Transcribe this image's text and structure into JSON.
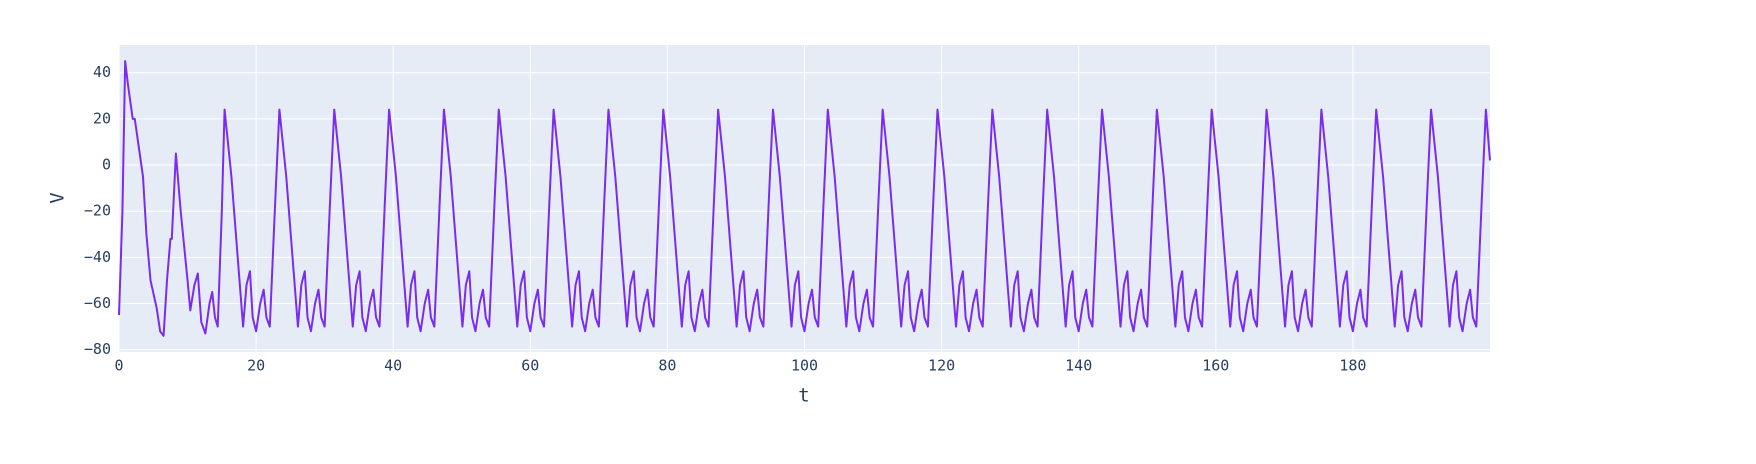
{
  "chart_data": {
    "type": "line",
    "x_label": "t",
    "y_label": "V",
    "x": [
      0,
      0.5,
      0.9,
      1.3,
      2,
      2.3,
      3.5,
      4,
      4.6,
      5.5,
      6,
      6.5,
      7,
      7.5,
      7.7,
      8.3,
      9,
      10,
      10.4,
      11,
      11.5,
      12,
      12.6,
      13.2,
      13.6,
      14,
      14.4,
      15,
      15.4,
      16.4,
      18.1,
      18.6,
      19.1,
      19.5,
      20,
      20.6,
      21.1,
      21.5,
      22,
      22.8,
      23.4,
      24.4,
      26.1,
      26.6,
      27.1,
      27.5,
      28,
      28.6,
      29.1,
      29.5,
      30,
      30.8,
      31.4,
      32.4,
      34.1,
      34.6,
      35.1,
      35.5,
      36,
      36.6,
      37.1,
      37.5,
      38,
      38.8,
      39.4,
      40.4,
      42.1,
      42.6,
      43.1,
      43.5,
      44,
      44.6,
      45.1,
      45.5,
      46,
      46.8,
      47.4,
      48.4,
      50.1,
      50.6,
      51.1,
      51.5,
      52,
      52.6,
      53.1,
      53.5,
      54,
      54.8,
      55.4,
      56.4,
      58.1,
      58.6,
      59.1,
      59.5,
      60,
      60.6,
      61.1,
      61.5,
      62,
      62.8,
      63.4,
      64.4,
      66.1,
      66.6,
      67.1,
      67.5,
      68,
      68.6,
      69.1,
      69.5,
      70,
      70.8,
      71.4,
      72.4,
      74.1,
      74.6,
      75.1,
      75.5,
      76,
      76.6,
      77.1,
      77.5,
      78,
      78.8,
      79.4,
      80.4,
      82.1,
      82.6,
      83.1,
      83.5,
      84,
      84.6,
      85.1,
      85.5,
      86,
      86.8,
      87.4,
      88.4,
      90.1,
      90.6,
      91.1,
      91.5,
      92,
      92.6,
      93.1,
      93.5,
      94,
      94.8,
      95.4,
      96.4,
      98.1,
      98.6,
      99.1,
      99.5,
      100,
      100.6,
      101.1,
      101.5,
      102,
      102.8,
      103.4,
      104.4,
      106.1,
      106.6,
      107.1,
      107.5,
      108,
      108.6,
      109.1,
      109.5,
      110,
      110.8,
      111.4,
      112.4,
      114.1,
      114.6,
      115.1,
      115.5,
      116,
      116.6,
      117.1,
      117.5,
      118,
      118.8,
      119.4,
      120.4,
      122.1,
      122.6,
      123.1,
      123.5,
      124,
      124.6,
      125.1,
      125.5,
      126,
      126.8,
      127.4,
      128.4,
      130.1,
      130.6,
      131.1,
      131.5,
      132,
      132.6,
      133.1,
      133.5,
      134,
      134.8,
      135.4,
      136.4,
      138.1,
      138.6,
      139.1,
      139.5,
      140,
      140.6,
      141.1,
      141.5,
      142,
      142.8,
      143.4,
      144.4,
      146.1,
      146.6,
      147.1,
      147.5,
      148,
      148.6,
      149.1,
      149.5,
      150,
      150.8,
      151.4,
      152.4,
      154.1,
      154.6,
      155.1,
      155.5,
      156,
      156.6,
      157.1,
      157.5,
      158,
      158.8,
      159.4,
      160.4,
      162.1,
      162.6,
      163.1,
      163.5,
      164,
      164.6,
      165.1,
      165.5,
      166,
      166.8,
      167.4,
      168.4,
      170.1,
      170.6,
      171.1,
      171.5,
      172,
      172.6,
      173.1,
      173.5,
      174,
      174.8,
      175.4,
      176.4,
      178.1,
      178.6,
      179.1,
      179.5,
      180,
      180.6,
      181.1,
      181.5,
      182,
      182.8,
      183.4,
      184.4,
      186.1,
      186.6,
      187.1,
      187.5,
      188,
      188.6,
      189.1,
      189.5,
      190,
      190.8,
      191.4,
      192.4,
      194.1,
      194.6,
      195.1,
      195.5,
      196,
      196.6,
      197.1,
      197.5,
      198,
      198.8,
      199.4,
      200
    ],
    "series": [
      {
        "name": "V",
        "color": "#7b2cf0",
        "values": [
          -65,
          -20,
          45,
          35,
          20,
          20,
          -5,
          -30,
          -50,
          -62,
          -72,
          -74,
          -50,
          -32,
          -32,
          5,
          -20,
          -50,
          -63,
          -52,
          -47,
          -68,
          -73,
          -60,
          -55,
          -66,
          -70,
          -20,
          24,
          -5,
          -70,
          -52,
          -46,
          -66,
          -72,
          -60,
          -54,
          -66,
          -70,
          -15,
          24,
          -5,
          -70,
          -52,
          -46,
          -66,
          -72,
          -60,
          -54,
          -66,
          -70,
          -15,
          24,
          -5,
          -70,
          -52,
          -46,
          -66,
          -72,
          -60,
          -54,
          -66,
          -70,
          -15,
          24,
          -5,
          -70,
          -52,
          -46,
          -66,
          -72,
          -60,
          -54,
          -66,
          -70,
          -15,
          24,
          -5,
          -70,
          -52,
          -46,
          -66,
          -72,
          -60,
          -54,
          -66,
          -70,
          -15,
          24,
          -5,
          -70,
          -52,
          -46,
          -66,
          -72,
          -60,
          -54,
          -66,
          -70,
          -15,
          24,
          -5,
          -70,
          -52,
          -46,
          -66,
          -72,
          -60,
          -54,
          -66,
          -70,
          -15,
          24,
          -5,
          -70,
          -52,
          -46,
          -66,
          -72,
          -60,
          -54,
          -66,
          -70,
          -15,
          24,
          -5,
          -70,
          -52,
          -46,
          -66,
          -72,
          -60,
          -54,
          -66,
          -70,
          -15,
          24,
          -5,
          -70,
          -52,
          -46,
          -66,
          -72,
          -60,
          -54,
          -66,
          -70,
          -15,
          24,
          -5,
          -70,
          -52,
          -46,
          -66,
          -72,
          -60,
          -54,
          -66,
          -70,
          -15,
          24,
          -5,
          -70,
          -52,
          -46,
          -66,
          -72,
          -60,
          -54,
          -66,
          -70,
          -15,
          24,
          -5,
          -70,
          -52,
          -46,
          -66,
          -72,
          -60,
          -54,
          -66,
          -70,
          -15,
          24,
          -5,
          -70,
          -52,
          -46,
          -66,
          -72,
          -60,
          -54,
          -66,
          -70,
          -15,
          24,
          -5,
          -70,
          -52,
          -46,
          -66,
          -72,
          -60,
          -54,
          -66,
          -70,
          -15,
          24,
          -5,
          -70,
          -52,
          -46,
          -66,
          -72,
          -60,
          -54,
          -66,
          -70,
          -15,
          24,
          -5,
          -70,
          -52,
          -46,
          -66,
          -72,
          -60,
          -54,
          -66,
          -70,
          -15,
          24,
          -5,
          -70,
          -52,
          -46,
          -66,
          -72,
          -60,
          -54,
          -66,
          -70,
          -15,
          24,
          -5,
          -70,
          -52,
          -46,
          -66,
          -72,
          -60,
          -54,
          -66,
          -70,
          -15,
          24,
          -5,
          -70,
          -52,
          -46,
          -66,
          -72,
          -60,
          -54,
          -66,
          -70,
          -15,
          24,
          -5,
          -70,
          -52,
          -46,
          -66,
          -72,
          -60,
          -54,
          -66,
          -70,
          -15,
          24,
          -5,
          -70,
          -52,
          -46,
          -66,
          -72,
          -60,
          -54,
          -66,
          -70,
          -15,
          24,
          -5,
          -70,
          -52,
          -46,
          -66,
          -72,
          -60,
          -54,
          -66,
          -70,
          -15,
          24,
          2
        ]
      }
    ],
    "xlim": [
      0,
      200
    ],
    "ylim": [
      -81,
      52
    ],
    "xticks": [
      0,
      20,
      40,
      60,
      80,
      100,
      120,
      140,
      160,
      180
    ],
    "yticks": [
      {
        "value": -80,
        "label": "−80"
      },
      {
        "value": -60,
        "label": "−60"
      },
      {
        "value": -40,
        "label": "−40"
      },
      {
        "value": -20,
        "label": "−20"
      },
      0,
      20,
      40
    ],
    "grid": true
  }
}
